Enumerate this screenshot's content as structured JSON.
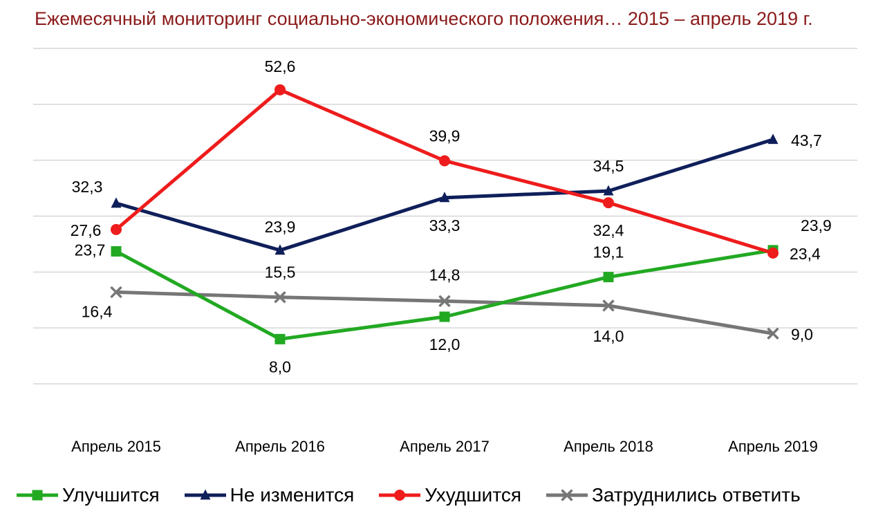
{
  "title": "Ежемесячный мониторинг социально-экономического положения… 2015 – апрель 2019 г.",
  "chart_data": {
    "type": "line",
    "categories": [
      "Апрель 2015",
      "Апрель 2016",
      "Апрель 2017",
      "Апрель 2018",
      "Апрель 2019"
    ],
    "ylim": [
      0,
      60
    ],
    "grid": true,
    "legend_position": "bottom",
    "series": [
      {
        "name": "Улучшится",
        "color": "#22a922",
        "marker": "square",
        "values": [
          23.7,
          8.0,
          12.0,
          19.1,
          23.9
        ],
        "labels": [
          "23,7",
          "8,0",
          "12,0",
          "19,1",
          "23,9"
        ]
      },
      {
        "name": "Не изменится",
        "color": "#0f1f5a",
        "marker": "triangle",
        "values": [
          32.3,
          23.9,
          33.3,
          34.5,
          43.7
        ],
        "labels": [
          "32,3",
          "23,9",
          "33,3",
          "34,5",
          "43,7"
        ]
      },
      {
        "name": "Ухудшится",
        "color": "#ee1c1c",
        "marker": "circle",
        "values": [
          27.6,
          52.6,
          39.9,
          32.4,
          23.4
        ],
        "labels": [
          "27,6",
          "52,6",
          "39,9",
          "32,4",
          "23,4"
        ]
      },
      {
        "name": "Затруднились ответить",
        "color": "#767676",
        "marker": "x",
        "values": [
          16.4,
          15.5,
          14.8,
          14.0,
          9.0
        ],
        "labels": [
          "16,4",
          "15,5",
          "14,8",
          "14,0",
          "9,0"
        ]
      }
    ]
  }
}
